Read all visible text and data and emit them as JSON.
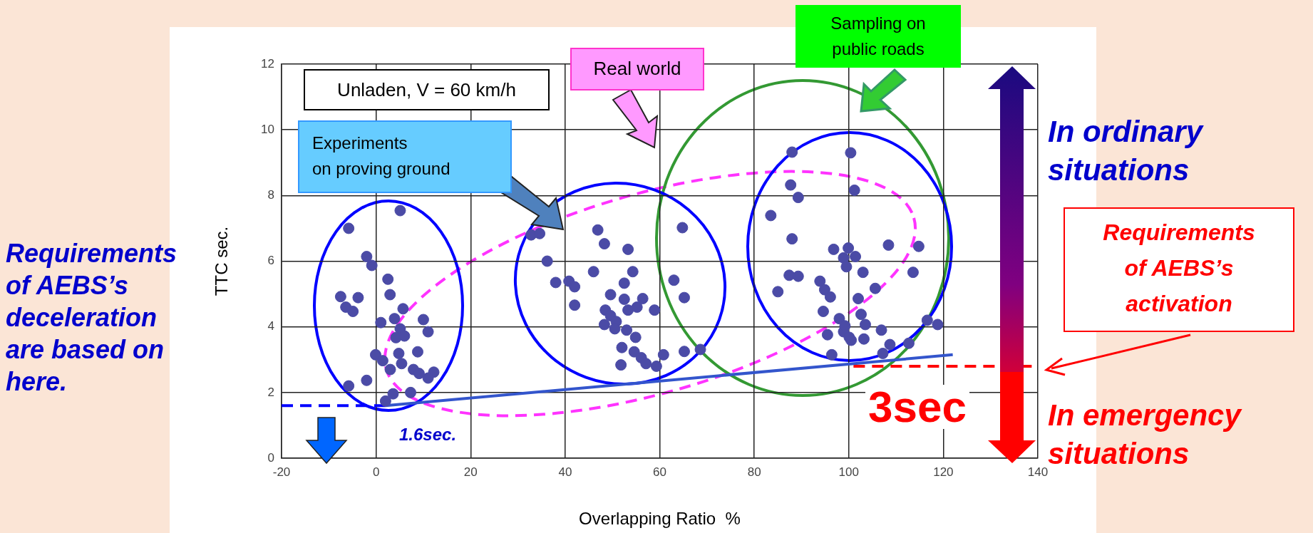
{
  "chart_data": {
    "type": "scatter",
    "xlabel": "Overlapping Ratio  %",
    "ylabel": "TTC sec.",
    "xlim": [
      -20,
      140
    ],
    "ylim": [
      0,
      12
    ],
    "xticks": [
      -20,
      0,
      20,
      40,
      60,
      80,
      100,
      120,
      140
    ],
    "yticks": [
      0,
      2,
      4,
      6,
      8,
      10,
      12
    ],
    "grid": true,
    "legend": false,
    "series": [
      {
        "type": "scatter",
        "marker": "circle",
        "color": "#4b4ba6",
        "x": [
          5.1,
          -5.8,
          -2,
          -0.9,
          2.5,
          2.95,
          -7.5,
          -3.8,
          -6.4,
          -4.9,
          5.7,
          10,
          1,
          3.9,
          5.1,
          11,
          4.2,
          6,
          -0.1,
          1.4,
          4.8,
          8.8,
          3,
          5.4,
          7.9,
          12.2,
          11,
          -5.8,
          -2,
          3.6,
          2,
          7.3,
          9.1,
          32.8,
          34.6,
          36.2,
          38,
          46.9,
          48.3,
          53.3,
          46,
          54.3,
          40.8,
          42,
          52.5,
          42,
          49.6,
          52.5,
          56.4,
          48.5,
          49.6,
          50.8,
          53.3,
          55.2,
          58.9,
          48.3,
          50.5,
          53,
          54.9,
          52,
          54.6,
          56.1,
          57.1,
          51.8,
          59.3,
          60.8,
          65.2,
          68.6,
          64.8,
          63,
          65.2,
          88,
          87.7,
          89.3,
          83.5,
          88,
          96.8,
          99.9,
          101.4,
          87.4,
          89.3,
          85,
          93.9,
          94.9,
          96.1,
          94.6,
          98,
          95.5,
          98.9,
          100.5,
          96.4,
          100.4,
          101.2,
          98.9,
          99.5,
          108.4,
          114.8,
          103,
          113.6,
          105.6,
          102,
          99.2,
          102.6,
          103.5,
          106.9,
          118.8,
          116.6,
          100.1,
          103.2,
          108.7,
          112.7,
          107.2
        ],
        "values": [
          7.54,
          7.0,
          6.14,
          5.87,
          5.45,
          4.98,
          4.92,
          4.89,
          4.6,
          4.47,
          4.55,
          4.22,
          4.13,
          4.25,
          3.94,
          3.85,
          3.67,
          3.72,
          3.15,
          2.97,
          3.19,
          3.24,
          2.7,
          2.88,
          2.7,
          2.62,
          2.44,
          2.2,
          2.37,
          1.96,
          1.74,
          2.0,
          2.58,
          6.8,
          6.84,
          6.0,
          5.35,
          6.95,
          6.53,
          6.36,
          5.68,
          5.68,
          5.39,
          5.22,
          5.33,
          4.66,
          4.98,
          4.84,
          4.86,
          4.51,
          4.34,
          4.16,
          4.51,
          4.6,
          4.51,
          4.07,
          3.94,
          3.9,
          3.68,
          3.37,
          3.24,
          3.06,
          2.88,
          2.84,
          2.8,
          3.15,
          3.25,
          3.31,
          7.02,
          5.42,
          4.89,
          9.32,
          8.32,
          7.94,
          7.39,
          6.68,
          6.36,
          6.4,
          6.14,
          5.57,
          5.54,
          5.07,
          5.39,
          5.13,
          4.91,
          4.47,
          4.25,
          3.76,
          3.85,
          3.59,
          3.15,
          9.3,
          8.16,
          6.1,
          5.83,
          6.49,
          6.45,
          5.66,
          5.66,
          5.17,
          4.86,
          4.03,
          4.38,
          4.07,
          3.9,
          4.07,
          4.2,
          3.68,
          3.63,
          3.46,
          3.5,
          3.19
        ]
      },
      {
        "type": "line",
        "marker": "none",
        "line_style": "solid",
        "color": "#3355cc",
        "x": [
          2,
          122
        ],
        "values": [
          1.6,
          3.15
        ]
      },
      {
        "type": "line",
        "marker": "none",
        "line_style": "dashed",
        "color": "#0000ff",
        "x": [
          -20,
          2
        ],
        "values": [
          1.6,
          1.6
        ]
      },
      {
        "type": "line",
        "marker": "none",
        "line_style": "dashed",
        "color": "#ff0000",
        "x": [
          101,
          140
        ],
        "values": [
          2.8,
          2.8
        ]
      }
    ],
    "annotations": [
      "Unladen, V = 60 km/h",
      "Experiments\non proving ground",
      "Real world",
      "Sampling on\npublic roads",
      "In ordinary\nsituations",
      "Requirements\nof AEBS’s\nactivation",
      "In emergency\nsituations",
      "Requirements\nof AEBS’s\ndeceleration\nare based on\nhere.",
      "1.6sec.",
      "3sec"
    ]
  }
}
